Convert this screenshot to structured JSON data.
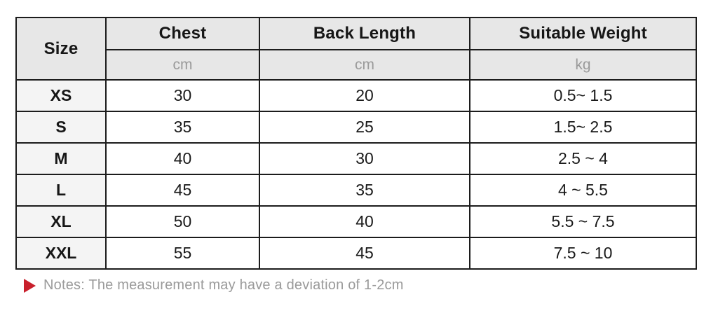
{
  "size_chart": {
    "header": {
      "size_label": "Size",
      "columns": [
        {
          "label": "Chest",
          "unit": "cm"
        },
        {
          "label": "Back Length",
          "unit": "cm"
        },
        {
          "label": "Suitable Weight",
          "unit": "kg"
        }
      ]
    },
    "rows": [
      {
        "size": "XS",
        "chest": "30",
        "back_length": "20",
        "suitable_weight": "0.5~ 1.5"
      },
      {
        "size": "S",
        "chest": "35",
        "back_length": "25",
        "suitable_weight": "1.5~ 2.5"
      },
      {
        "size": "M",
        "chest": "40",
        "back_length": "30",
        "suitable_weight": "2.5 ~ 4"
      },
      {
        "size": "L",
        "chest": "45",
        "back_length": "35",
        "suitable_weight": "4 ~ 5.5"
      },
      {
        "size": "XL",
        "chest": "50",
        "back_length": "40",
        "suitable_weight": "5.5 ~ 7.5"
      },
      {
        "size": "XXL",
        "chest": "55",
        "back_length": "45",
        "suitable_weight": "7.5 ~ 10"
      }
    ]
  },
  "note": {
    "icon": "red-play-arrow",
    "text": "Notes: The measurement may have a deviation of 1-2cm"
  },
  "colors": {
    "header_bg": "#e7e7e7",
    "size_column_bg": "#f4f4f4",
    "border": "#1c1c1c",
    "unit_text": "#9a9a9a",
    "note_text": "#9a9a9a",
    "note_arrow": "#c9202c"
  }
}
